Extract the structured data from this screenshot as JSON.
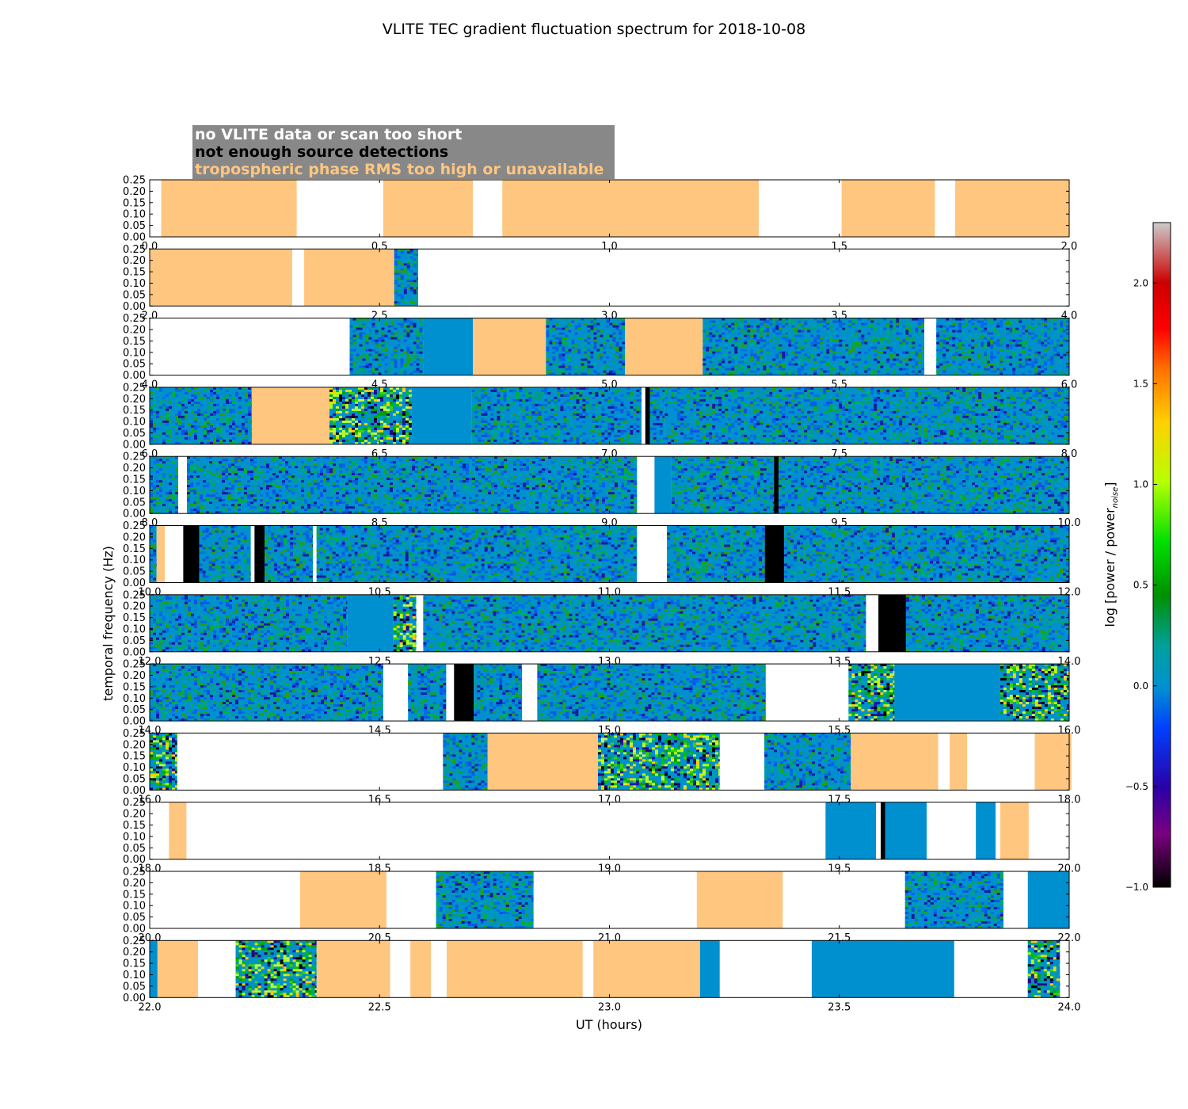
{
  "chart_data": {
    "type": "heatmap",
    "title": "VLITE TEC gradient fluctuation spectrum for 2018-10-08",
    "xlabel": "UT (hours)",
    "ylabel": "temporal frequency (Hz)",
    "ylim": [
      0,
      0.25
    ],
    "yticks": [
      "0.00",
      "0.05",
      "0.10",
      "0.15",
      "0.20",
      "0.25"
    ],
    "legend": [
      {
        "label": "no VLITE data or scan too short",
        "text_color": "#ffffff"
      },
      {
        "label": "not enough source detections",
        "text_color": "#000000"
      },
      {
        "label": "tropospheric phase RMS too high or unavailable",
        "text_color": "#ffc680"
      }
    ],
    "colorbar": {
      "label": "log [power / power",
      "label_subscript": "noise",
      "label_close": "]",
      "range": [
        -1.0,
        2.3
      ],
      "ticks": [
        "−1.0",
        "−0.5",
        "0.0",
        "0.5",
        "1.0",
        "1.5",
        "2.0"
      ],
      "tick_values": [
        -1.0,
        -0.5,
        0.0,
        0.5,
        1.0,
        1.5,
        2.0
      ]
    },
    "colors": {
      "troposphere": "#ffc680",
      "detections": "#000000",
      "nodata": "#ffffff",
      "baseline": "#0090d0"
    },
    "panels": [
      {
        "xlim": [
          0,
          2
        ],
        "xticks": [
          "0.0",
          "0.5",
          "1.0",
          "1.5",
          "2.0"
        ],
        "segments": [
          [
            0,
            0.025,
            "w"
          ],
          [
            0.025,
            0.32,
            "o"
          ],
          [
            0.32,
            0.508,
            "w"
          ],
          [
            0.508,
            0.703,
            "o"
          ],
          [
            0.703,
            0.767,
            "w"
          ],
          [
            0.767,
            1.325,
            "o"
          ],
          [
            1.325,
            1.505,
            "w"
          ],
          [
            1.505,
            1.708,
            "o"
          ],
          [
            1.708,
            1.752,
            "w"
          ],
          [
            1.752,
            2.0,
            "o"
          ]
        ]
      },
      {
        "xlim": [
          2,
          4
        ],
        "xticks": [
          "2.0",
          "2.5",
          "3.0",
          "3.5",
          "4.0"
        ],
        "segments": [
          [
            2.0,
            2.31,
            "o"
          ],
          [
            2.31,
            2.336,
            "w"
          ],
          [
            2.336,
            2.532,
            "o"
          ],
          [
            2.532,
            2.584,
            "m"
          ],
          [
            2.584,
            4.0,
            "w"
          ]
        ]
      },
      {
        "xlim": [
          4,
          6
        ],
        "xticks": [
          "4.0",
          "4.5",
          "5.0",
          "5.5",
          "6.0"
        ],
        "segments": [
          [
            4.0,
            4.435,
            "w"
          ],
          [
            4.435,
            4.595,
            "n"
          ],
          [
            4.595,
            4.703,
            "b"
          ],
          [
            4.703,
            4.862,
            "o"
          ],
          [
            4.862,
            5.034,
            "n"
          ],
          [
            5.034,
            5.203,
            "o"
          ],
          [
            5.203,
            5.685,
            "n"
          ],
          [
            5.685,
            5.711,
            "w"
          ],
          [
            5.711,
            6.0,
            "n"
          ]
        ]
      },
      {
        "xlim": [
          6,
          8
        ],
        "xticks": [
          "6.0",
          "6.5",
          "7.0",
          "7.5",
          "8.0"
        ],
        "segments": [
          [
            6.0,
            6.222,
            "n"
          ],
          [
            6.222,
            6.391,
            "o"
          ],
          [
            6.391,
            6.57,
            "h"
          ],
          [
            6.57,
            6.7,
            "b"
          ],
          [
            6.7,
            7.07,
            "n"
          ],
          [
            7.07,
            7.078,
            "w"
          ],
          [
            7.078,
            7.088,
            "k"
          ],
          [
            7.088,
            7.12,
            "m"
          ],
          [
            7.12,
            8.0,
            "n"
          ]
        ]
      },
      {
        "xlim": [
          8,
          10
        ],
        "xticks": [
          "8.0",
          "8.5",
          "9.0",
          "9.5",
          "10.0"
        ],
        "segments": [
          [
            8.0,
            8.062,
            "n"
          ],
          [
            8.062,
            8.081,
            "w"
          ],
          [
            8.081,
            9.06,
            "n"
          ],
          [
            9.06,
            9.098,
            "w"
          ],
          [
            9.098,
            9.135,
            "b"
          ],
          [
            9.135,
            9.358,
            "n"
          ],
          [
            9.358,
            9.368,
            "k"
          ],
          [
            9.368,
            10.0,
            "n"
          ]
        ]
      },
      {
        "xlim": [
          10,
          12
        ],
        "xticks": [
          "10.0",
          "10.5",
          "11.0",
          "11.5",
          "12.0"
        ],
        "segments": [
          [
            10.0,
            10.015,
            "n"
          ],
          [
            10.015,
            10.033,
            "o"
          ],
          [
            10.033,
            10.073,
            "w"
          ],
          [
            10.073,
            10.108,
            "k"
          ],
          [
            10.108,
            10.22,
            "n"
          ],
          [
            10.22,
            10.228,
            "w"
          ],
          [
            10.228,
            10.25,
            "k"
          ],
          [
            10.25,
            10.355,
            "n"
          ],
          [
            10.355,
            10.363,
            "w"
          ],
          [
            10.363,
            11.06,
            "n"
          ],
          [
            11.06,
            11.125,
            "w"
          ],
          [
            11.125,
            11.338,
            "n"
          ],
          [
            11.338,
            11.38,
            "k"
          ],
          [
            11.38,
            12.0,
            "n"
          ]
        ]
      },
      {
        "xlim": [
          12,
          14
        ],
        "xticks": [
          "12.0",
          "12.5",
          "13.0",
          "13.5",
          "14.0"
        ],
        "segments": [
          [
            12.0,
            12.43,
            "n"
          ],
          [
            12.43,
            12.53,
            "b"
          ],
          [
            12.53,
            12.58,
            "h"
          ],
          [
            12.58,
            12.595,
            "w"
          ],
          [
            12.595,
            13.558,
            "n"
          ],
          [
            13.558,
            13.585,
            "w"
          ],
          [
            13.585,
            13.645,
            "k"
          ],
          [
            13.645,
            14.0,
            "n"
          ]
        ]
      },
      {
        "xlim": [
          14,
          16
        ],
        "xticks": [
          "14.0",
          "14.5",
          "15.0",
          "15.5",
          "16.0"
        ],
        "segments": [
          [
            14.0,
            14.508,
            "n"
          ],
          [
            14.508,
            14.562,
            "w"
          ],
          [
            14.562,
            14.645,
            "n"
          ],
          [
            14.645,
            14.662,
            "w"
          ],
          [
            14.662,
            14.705,
            "k"
          ],
          [
            14.705,
            14.81,
            "n"
          ],
          [
            14.81,
            14.843,
            "w"
          ],
          [
            14.843,
            15.34,
            "n"
          ],
          [
            15.34,
            15.52,
            "w"
          ],
          [
            15.52,
            15.62,
            "h"
          ],
          [
            15.62,
            15.85,
            "b"
          ],
          [
            15.85,
            16.0,
            "h"
          ]
        ]
      },
      {
        "xlim": [
          16,
          18
        ],
        "xticks": [
          "16.0",
          "16.5",
          "17.0",
          "17.5",
          "18.0"
        ],
        "segments": [
          [
            16.0,
            16.06,
            "h"
          ],
          [
            16.06,
            16.638,
            "w"
          ],
          [
            16.638,
            16.735,
            "n"
          ],
          [
            16.735,
            16.975,
            "o"
          ],
          [
            16.975,
            17.24,
            "h"
          ],
          [
            17.24,
            17.337,
            "w"
          ],
          [
            17.337,
            17.525,
            "n"
          ],
          [
            17.525,
            17.715,
            "o"
          ],
          [
            17.715,
            17.74,
            "w"
          ],
          [
            17.74,
            17.778,
            "o"
          ],
          [
            17.778,
            17.925,
            "w"
          ],
          [
            17.925,
            18.005,
            "o"
          ]
        ]
      },
      {
        "xlim": [
          18,
          20
        ],
        "xticks": [
          "18.0",
          "18.5",
          "19.0",
          "19.5",
          "20.0"
        ],
        "segments": [
          [
            18.0,
            18.042,
            "w"
          ],
          [
            18.042,
            18.08,
            "o"
          ],
          [
            18.08,
            19.47,
            "w"
          ],
          [
            19.47,
            19.58,
            "b"
          ],
          [
            19.58,
            19.59,
            "w"
          ],
          [
            19.59,
            19.6,
            "k"
          ],
          [
            19.6,
            19.69,
            "b"
          ],
          [
            19.69,
            19.797,
            "w"
          ],
          [
            19.797,
            19.84,
            "b"
          ],
          [
            19.84,
            19.85,
            "w"
          ],
          [
            19.85,
            19.912,
            "o"
          ],
          [
            19.912,
            20.0,
            "w"
          ]
        ]
      },
      {
        "xlim": [
          20,
          22
        ],
        "xticks": [
          "20.0",
          "20.5",
          "21.0",
          "21.5",
          "22.0"
        ],
        "segments": [
          [
            20.0,
            20.327,
            "w"
          ],
          [
            20.327,
            20.515,
            "o"
          ],
          [
            20.515,
            20.623,
            "w"
          ],
          [
            20.623,
            20.835,
            "n"
          ],
          [
            20.835,
            21.19,
            "w"
          ],
          [
            21.19,
            21.377,
            "o"
          ],
          [
            21.377,
            21.643,
            "w"
          ],
          [
            21.643,
            21.857,
            "n"
          ],
          [
            21.857,
            21.91,
            "w"
          ],
          [
            21.91,
            22.0,
            "b"
          ]
        ]
      },
      {
        "xlim": [
          22,
          24
        ],
        "xticks": [
          "22.0",
          "22.5",
          "23.0",
          "23.5",
          "24.0"
        ],
        "segments": [
          [
            22.0,
            22.017,
            "b"
          ],
          [
            22.017,
            22.105,
            "o"
          ],
          [
            22.105,
            22.187,
            "w"
          ],
          [
            22.187,
            22.363,
            "h"
          ],
          [
            22.363,
            22.523,
            "o"
          ],
          [
            22.523,
            22.567,
            "w"
          ],
          [
            22.567,
            22.612,
            "o"
          ],
          [
            22.612,
            22.646,
            "w"
          ],
          [
            22.646,
            22.942,
            "o"
          ],
          [
            22.942,
            22.965,
            "w"
          ],
          [
            22.965,
            23.197,
            "o"
          ],
          [
            23.197,
            23.24,
            "b"
          ],
          [
            23.24,
            23.44,
            "w"
          ],
          [
            23.44,
            23.75,
            "b"
          ],
          [
            23.75,
            23.91,
            "w"
          ],
          [
            23.91,
            23.98,
            "h"
          ],
          [
            23.98,
            24.0,
            "w"
          ]
        ]
      }
    ]
  }
}
